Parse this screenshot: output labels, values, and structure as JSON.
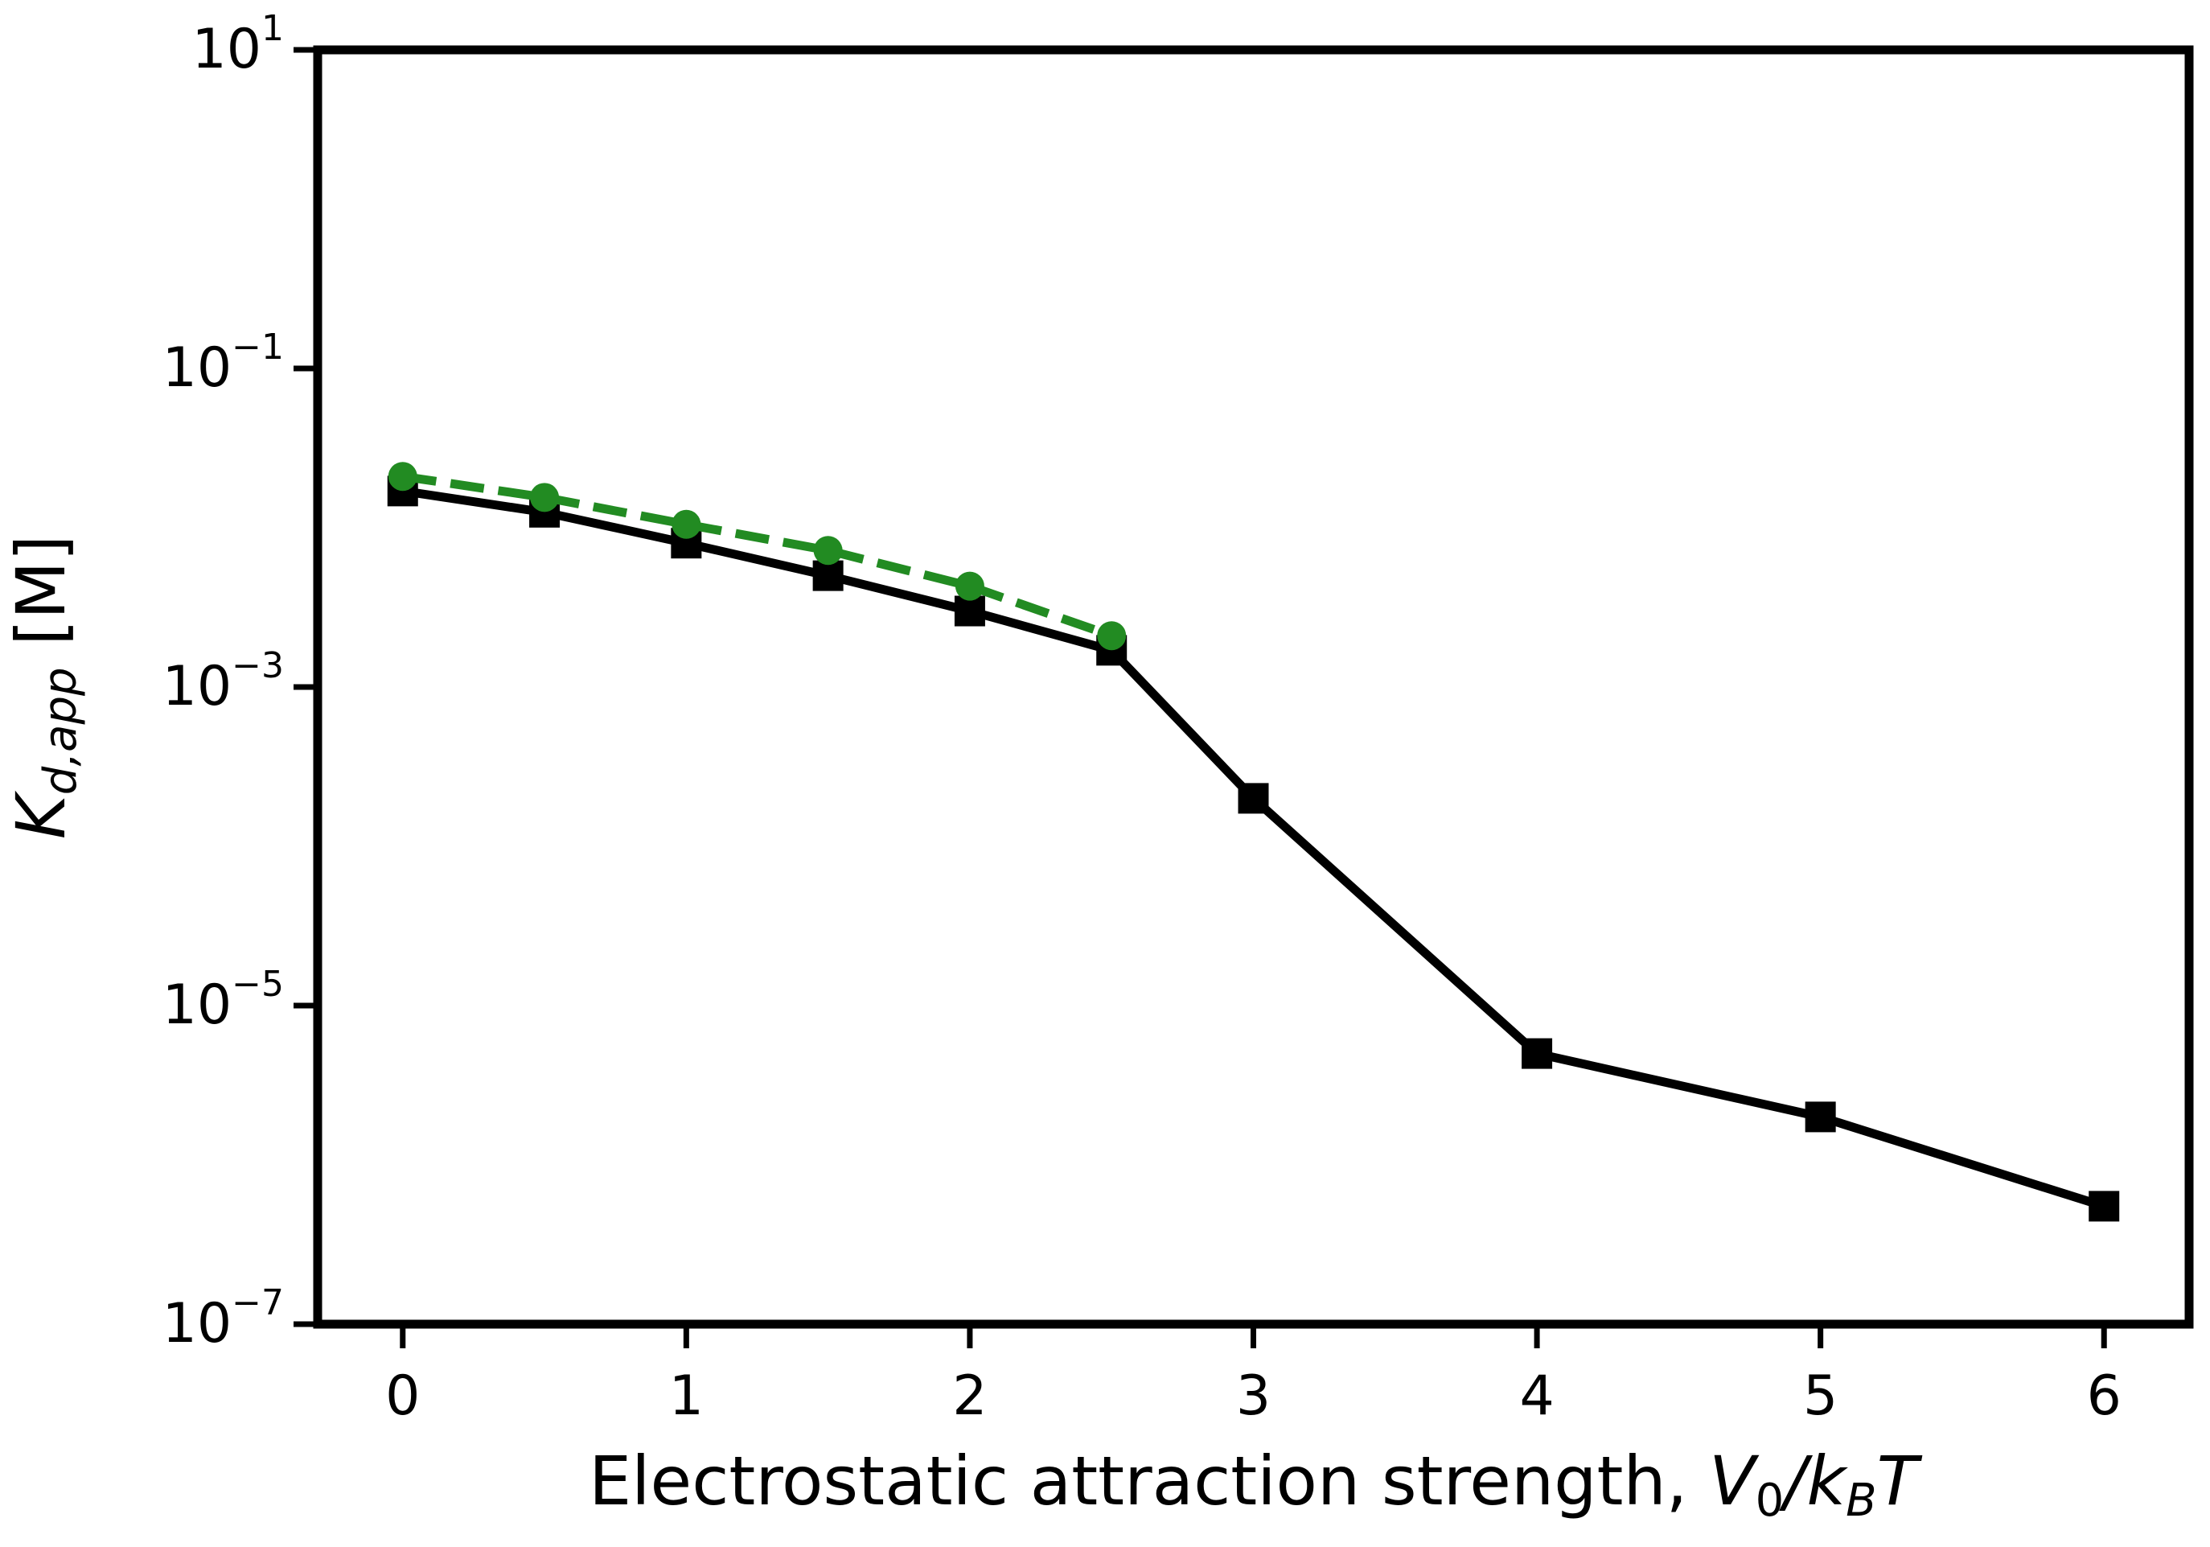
{
  "chart_data": {
    "type": "line",
    "title": "",
    "xlabel": {
      "prefix": "Electrostatic attraction strength, ",
      "math": [
        "V",
        "0",
        "/k",
        "B",
        "T"
      ]
    },
    "ylabel": {
      "symbol": "K",
      "subscript": "d,app",
      "unit": " [M]"
    },
    "xlim": [
      -0.3,
      6.3
    ],
    "yscale": "log",
    "ylim": [
      1e-07,
      10
    ],
    "xticks": [
      {
        "value": 0,
        "label": "0"
      },
      {
        "value": 1,
        "label": "1"
      },
      {
        "value": 2,
        "label": "2"
      },
      {
        "value": 3,
        "label": "3"
      },
      {
        "value": 4,
        "label": "4"
      },
      {
        "value": 5,
        "label": "5"
      },
      {
        "value": 6,
        "label": "6"
      }
    ],
    "yticks": [
      {
        "value": 10,
        "base": "10",
        "exp": "1"
      },
      {
        "value": 0.1,
        "base": "10",
        "exp": "−1"
      },
      {
        "value": 0.001,
        "base": "10",
        "exp": "−3"
      },
      {
        "value": 1e-05,
        "base": "10",
        "exp": "−5"
      },
      {
        "value": 1e-07,
        "base": "10",
        "exp": "−7"
      }
    ],
    "grid": false,
    "series": [
      {
        "color": "#000000",
        "line_style": "solid",
        "marker": "square",
        "points": [
          {
            "x": 0,
            "y": 0.017
          },
          {
            "x": 0.5,
            "y": 0.0125
          },
          {
            "x": 1,
            "y": 0.008
          },
          {
            "x": 1.5,
            "y": 0.005
          },
          {
            "x": 2,
            "y": 0.003
          },
          {
            "x": 2.5,
            "y": 0.0017
          },
          {
            "x": 3,
            "y": 0.0002
          },
          {
            "x": 4,
            "y": 5e-06
          },
          {
            "x": 5,
            "y": 2e-06
          },
          {
            "x": 6,
            "y": 5.5e-07
          }
        ]
      },
      {
        "color": "#228b22",
        "line_style": "dashed",
        "marker": "circle",
        "points": [
          {
            "x": 0,
            "y": 0.021
          },
          {
            "x": 0.5,
            "y": 0.0155
          },
          {
            "x": 1,
            "y": 0.0105
          },
          {
            "x": 1.5,
            "y": 0.0072
          },
          {
            "x": 2,
            "y": 0.0043
          },
          {
            "x": 2.5,
            "y": 0.0021
          }
        ]
      }
    ]
  }
}
